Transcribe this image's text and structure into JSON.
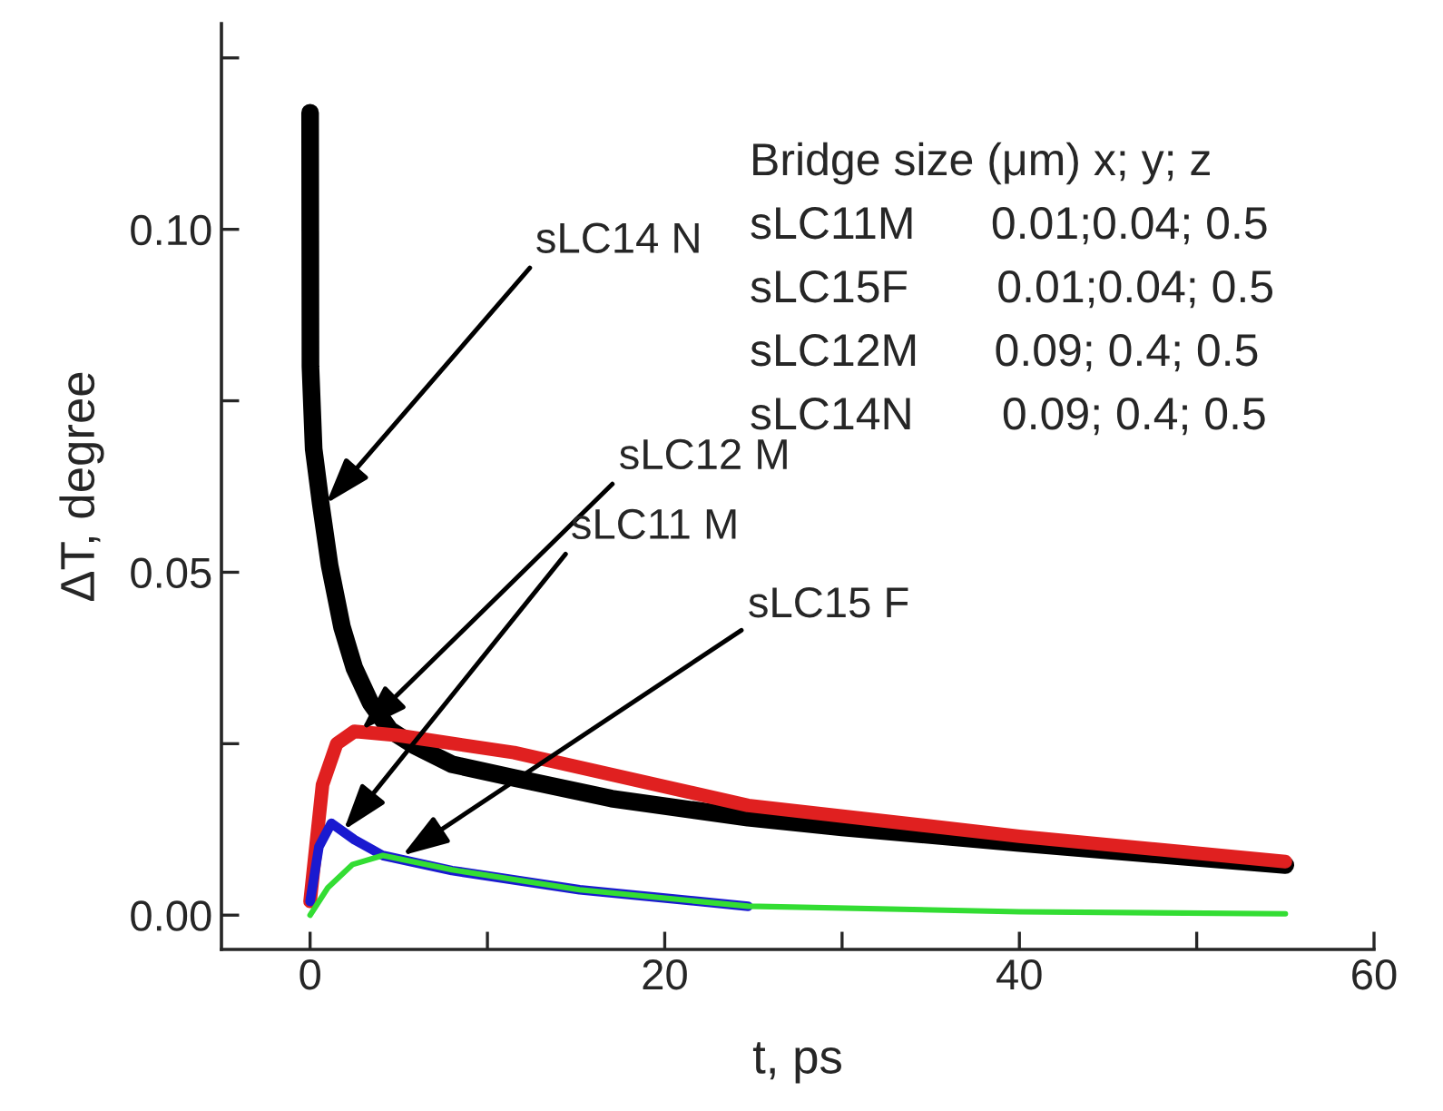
{
  "chart_data": {
    "type": "line",
    "xlabel": "t, ps",
    "ylabel": "ΔT, degree",
    "xlim": [
      -5,
      60
    ],
    "ylim": [
      -0.005,
      0.13
    ],
    "xticks": [
      0,
      {
        "value": 10,
        "label": null
      },
      20,
      {
        "value": 30,
        "label": null
      },
      40,
      {
        "value": 50,
        "label": null
      },
      60
    ],
    "yticks": [
      {
        "value": 0,
        "label": "0.00"
      },
      {
        "value": 0.025,
        "label": null
      },
      {
        "value": 0.05,
        "label": "0.05"
      },
      {
        "value": 0.075,
        "label": null
      },
      {
        "value": 0.1,
        "label": "0.10"
      },
      {
        "value": 0.125,
        "label": null
      }
    ],
    "grid": false,
    "legend": false,
    "marker": "none",
    "line_style": "solid",
    "series": [
      {
        "color": "#000000",
        "x": [
          0,
          0.02,
          0.2,
          0.6,
          1.1,
          1.8,
          2.5,
          3.4,
          4.5,
          5.9,
          8,
          11.5,
          17,
          24.7,
          30,
          40,
          55
        ],
        "values": [
          0.117,
          0.08,
          0.068,
          0.06,
          0.051,
          0.042,
          0.036,
          0.031,
          0.027,
          0.0247,
          0.022,
          0.02,
          0.017,
          0.0142,
          0.0128,
          0.0105,
          0.0073
        ]
      },
      {
        "color": "#e02020",
        "x": [
          0,
          0.7,
          1.5,
          2.5,
          5,
          11.5,
          24.7,
          40,
          55
        ],
        "values": [
          0.002,
          0.019,
          0.025,
          0.0268,
          0.0262,
          0.0237,
          0.016,
          0.0115,
          0.0078
        ]
      },
      {
        "color": "#1a1ad0",
        "x": [
          0,
          0.5,
          1.2,
          2.5,
          4.1,
          8,
          15.2,
          24.7
        ],
        "values": [
          0.002,
          0.01,
          0.0134,
          0.011,
          0.0087,
          0.0065,
          0.0037,
          0.0013
        ]
      },
      {
        "color": "#33dd33",
        "x": [
          0,
          1,
          2.4,
          4.1,
          8,
          15.2,
          24.7,
          40,
          55
        ],
        "values": [
          0,
          0.004,
          0.0074,
          0.0087,
          0.0066,
          0.0037,
          0.0013,
          0.0005,
          0.0002
        ]
      }
    ],
    "annotations": [
      {
        "text": "sLC14 N",
        "x": 0.9,
        "y": 0.06
      },
      {
        "text": "sLC12 M",
        "x": 2.9,
        "y": 0.027
      },
      {
        "text": "sLC11 M",
        "x": 1.9,
        "y": 0.0124
      },
      {
        "text": "sLC15 F",
        "x": 5.2,
        "y": 0.0087
      },
      "Bridge size (μm) x; y; z",
      "sLC11M      0.01;0.04; 0.5",
      "sLC15F       0.01;0.04; 0.5",
      "sLC12M      0.09; 0.4; 0.5",
      "sLC14N       0.09; 0.4; 0.5"
    ]
  }
}
